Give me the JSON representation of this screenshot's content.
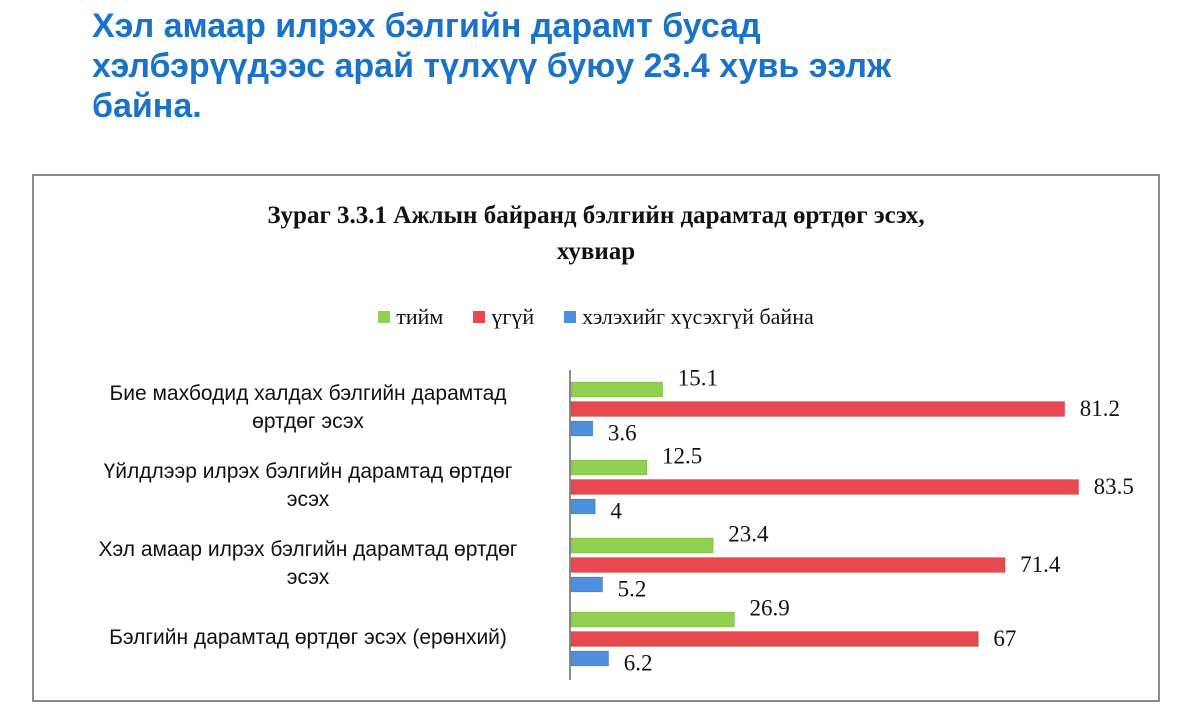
{
  "headline": {
    "lines": [
      "Хэл амаар илрэх бэлгийн дарамт бусад",
      "хэлбэрүүдээс арай түлхүү буюу 23.4 хувь ээлж",
      "байна."
    ]
  },
  "chart_data": {
    "type": "bar",
    "orientation": "horizontal",
    "title_lines": [
      "Зураг 3.3.1 Ажлын байранд бэлгийн дарамтад өртдөг эсэх,",
      "хувиар"
    ],
    "legend_position": "top",
    "categories": [
      [
        "Бие махбодид халдах  бэлгийн дарамтад",
        "өртдөг эсэх"
      ],
      [
        "Үйлдлээр илрэх бэлгийн дарамтад өртдөг",
        "эсэх"
      ],
      [
        "Хэл амаар илрэх бэлгийн дарамтад өртдөг",
        "эсэх"
      ],
      [
        "Бэлгийн дарамтад өртдөг эсэх (ерөнхий)"
      ]
    ],
    "series": [
      {
        "name": "тийм",
        "color": "#92d050",
        "values": [
          15.1,
          12.5,
          23.4,
          26.9
        ]
      },
      {
        "name": "үгүй",
        "color": "#e8494f",
        "values": [
          81.2,
          83.5,
          71.4,
          67
        ]
      },
      {
        "name": "хэлэхийг хүсэхгүй байна",
        "color": "#4f8fe0",
        "values": [
          3.6,
          4,
          5.2,
          6.2
        ]
      }
    ],
    "value_labels": [
      [
        "15.1",
        "12.5",
        "23.4",
        "26.9"
      ],
      [
        "81.2",
        "83.5",
        "71.4",
        "67"
      ],
      [
        "3.6",
        "4",
        "5.2",
        "6.2"
      ]
    ],
    "xlim": [
      0,
      90
    ],
    "grid": false
  }
}
